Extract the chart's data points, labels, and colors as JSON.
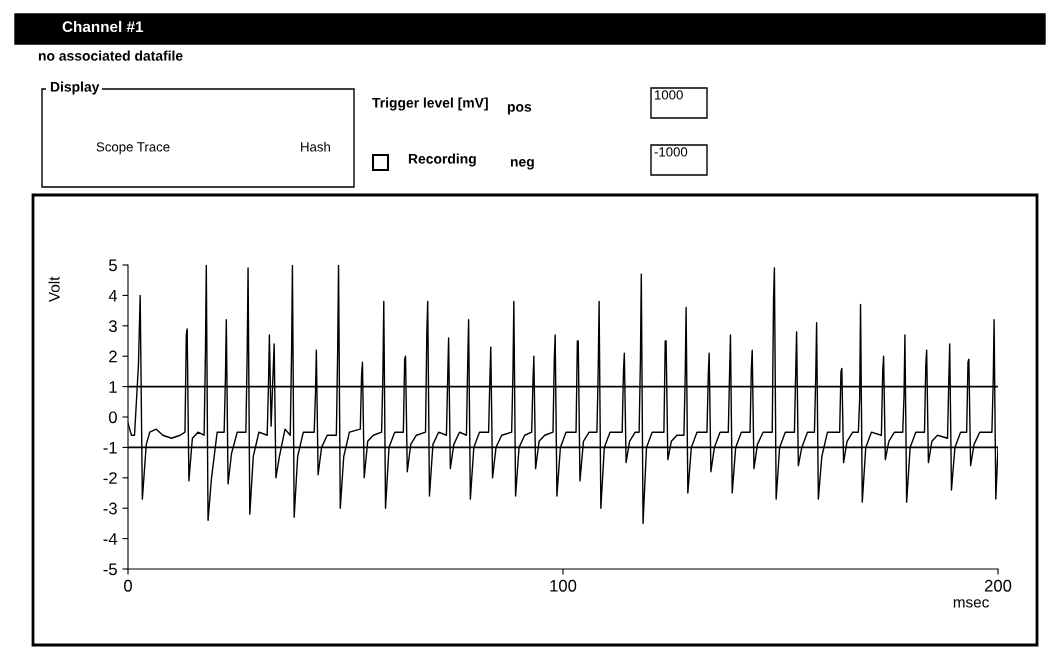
{
  "chart_data": {
    "type": "line",
    "title": "Channel #1",
    "xlabel": "msec",
    "ylabel": "Volt",
    "annotations": [
      "no associated datafile",
      "Display",
      "Scope Trace",
      "Hash",
      "Trigger level [mV]",
      "pos",
      "1000",
      "Recording",
      "neg",
      "-1000"
    ],
    "xlim": [
      0,
      200
    ],
    "xticks": [
      0,
      100,
      200
    ],
    "ylim": [
      -5,
      5
    ],
    "yticks": [
      -5,
      -4,
      -3,
      -2,
      -1,
      0,
      1,
      2,
      3,
      4,
      5
    ],
    "ref_lines": [
      {
        "axis": "y",
        "value": 1,
        "color": "#000000"
      },
      {
        "axis": "y",
        "value": -1,
        "color": "#000000"
      }
    ],
    "grid": false,
    "legend": false,
    "marker": "none",
    "line_style": "solid",
    "series": [
      {
        "color": "#000000",
        "x": [
          0,
          0.8,
          1.5,
          2.4,
          2.8,
          3.3,
          4.2,
          5.0,
          6.5,
          8,
          10,
          12,
          13.1,
          13.4,
          13.6,
          14.0,
          14.8,
          16.1,
          17.5,
          17.8,
          18.0,
          18.4,
          19.2,
          20.5,
          22.1,
          22.4,
          22.6,
          23.0,
          23.8,
          25.1,
          27.1,
          27.4,
          27.6,
          28.0,
          28.8,
          30.1,
          32.0,
          32.3,
          32.5,
          32.9,
          33.6,
          34.0,
          34.8,
          36.1,
          37.3,
          37.6,
          37.8,
          38.2,
          39.0,
          40.3,
          42.8,
          43.1,
          43.3,
          43.7,
          44.5,
          45.8,
          47.9,
          48.2,
          48.4,
          48.8,
          49.6,
          50.9,
          53.4,
          53.7,
          53.9,
          54.3,
          55.1,
          56.4,
          58.3,
          58.6,
          58.8,
          59.2,
          60.0,
          61.3,
          63.3,
          63.6,
          63.8,
          64.2,
          65.0,
          66.3,
          68.4,
          68.7,
          68.9,
          69.3,
          70.1,
          71.4,
          73.2,
          73.5,
          73.7,
          74.1,
          74.9,
          76.2,
          77.8,
          78.1,
          78.3,
          78.7,
          79.5,
          80.8,
          82.9,
          83.2,
          83.4,
          83.8,
          84.6,
          85.9,
          88.2,
          88.5,
          88.7,
          89.1,
          89.9,
          91.2,
          92.8,
          93.1,
          93.3,
          93.7,
          94.5,
          95.8,
          97.7,
          98.0,
          98.2,
          98.6,
          99.4,
          100.7,
          103.0,
          103.3,
          103.5,
          103.9,
          104.7,
          106.0,
          107.8,
          108.1,
          108.3,
          108.7,
          109.5,
          110.8,
          113.6,
          113.9,
          114.1,
          114.5,
          115.3,
          116.6,
          117.5,
          117.8,
          118.0,
          118.4,
          119.2,
          120.5,
          123.2,
          123.5,
          123.7,
          124.1,
          124.9,
          126.2,
          127.8,
          128.1,
          128.3,
          128.7,
          129.5,
          130.8,
          133.1,
          133.4,
          133.6,
          134.0,
          134.8,
          136.1,
          138.0,
          138.3,
          138.5,
          138.9,
          139.7,
          141.0,
          143.0,
          143.3,
          143.5,
          143.9,
          144.7,
          146.0,
          148.1,
          148.4,
          148.6,
          149.0,
          149.8,
          151.1,
          153.2,
          153.5,
          153.7,
          154.1,
          154.9,
          156.2,
          157.8,
          158.1,
          158.3,
          158.7,
          159.5,
          160.8,
          163.6,
          163.9,
          164.1,
          164.5,
          165.3,
          166.6,
          167.9,
          168.2,
          168.4,
          168.8,
          169.6,
          170.9,
          173.2,
          173.5,
          173.7,
          174.1,
          174.9,
          176.2,
          178.1,
          178.4,
          178.6,
          179.0,
          179.8,
          181.1,
          183.1,
          183.4,
          183.6,
          184.0,
          184.8,
          186.1,
          188.4,
          188.7,
          188.9,
          189.3,
          190.1,
          191.4,
          192.8,
          193.1,
          193.3,
          193.7,
          194.5,
          195.8,
          198.6,
          198.9,
          199.1,
          199.5,
          200
        ],
        "values": [
          -0.2,
          -0.6,
          -0.6,
          1.7,
          4.0,
          -2.7,
          -0.9,
          -0.5,
          -0.4,
          -0.6,
          -0.7,
          -0.6,
          -0.5,
          2.7,
          2.9,
          -2.1,
          -0.7,
          -0.5,
          -0.6,
          2.1,
          5.0,
          -3.4,
          -2.0,
          -0.5,
          -0.5,
          1.3,
          3.2,
          -2.2,
          -1.2,
          -0.5,
          -0.5,
          2.1,
          4.9,
          -3.2,
          -1.3,
          -0.5,
          -0.6,
          1.1,
          2.7,
          -0.3,
          2.4,
          -2.0,
          -1.3,
          -0.4,
          -0.6,
          2.1,
          5.0,
          -3.3,
          -1.3,
          -0.5,
          -0.5,
          0.8,
          2.2,
          -1.9,
          -1.0,
          -0.6,
          -0.6,
          2.2,
          5.0,
          -3.0,
          -1.3,
          -0.5,
          -0.4,
          1.4,
          1.8,
          -2.0,
          -0.8,
          -0.6,
          -0.5,
          1.4,
          3.8,
          -3.0,
          -1.0,
          -0.5,
          -0.5,
          1.9,
          2.0,
          -1.8,
          -0.9,
          -0.6,
          -0.5,
          2.8,
          3.8,
          -2.6,
          -0.9,
          -0.5,
          -0.6,
          1.3,
          2.6,
          -1.7,
          -0.9,
          -0.5,
          -0.6,
          1.8,
          3.2,
          -2.7,
          -1.0,
          -0.5,
          -0.5,
          1.3,
          2.3,
          -2.0,
          -1.0,
          -0.6,
          -0.5,
          1.5,
          3.8,
          -2.6,
          -1.0,
          -0.6,
          -0.5,
          1.2,
          2.0,
          -1.7,
          -0.8,
          -0.6,
          -0.5,
          1.9,
          2.7,
          -2.6,
          -1.0,
          -0.5,
          -0.5,
          2.5,
          2.5,
          -2.1,
          -0.8,
          -0.5,
          -0.5,
          1.6,
          3.8,
          -3.0,
          -1.0,
          -0.5,
          -0.5,
          1.5,
          2.1,
          -1.5,
          -0.8,
          -0.5,
          -0.5,
          1.9,
          4.7,
          -3.5,
          -1.0,
          -0.5,
          -0.5,
          2.5,
          2.5,
          -1.4,
          -0.8,
          -0.6,
          -0.6,
          1.4,
          3.6,
          -2.5,
          -1.0,
          -0.5,
          -0.5,
          1.4,
          2.1,
          -1.8,
          -1.0,
          -0.5,
          -0.5,
          1.5,
          2.7,
          -2.5,
          -1.0,
          -0.5,
          -0.5,
          1.6,
          2.2,
          -1.7,
          -0.9,
          -0.5,
          -0.5,
          3.9,
          4.9,
          -2.7,
          -1.0,
          -0.5,
          -0.5,
          1.5,
          2.8,
          -1.6,
          -1.0,
          -0.5,
          -0.5,
          1.3,
          3.1,
          -2.7,
          -1.3,
          -0.5,
          -0.5,
          1.5,
          1.6,
          -1.5,
          -0.8,
          -0.5,
          -0.5,
          0.6,
          3.7,
          -2.8,
          -1.0,
          -0.5,
          -0.6,
          1.5,
          2.0,
          -1.4,
          -0.8,
          -0.5,
          -0.5,
          0.7,
          2.7,
          -2.8,
          -1.0,
          -0.5,
          -0.5,
          1.7,
          2.2,
          -1.5,
          -0.8,
          -0.6,
          -0.7,
          1.3,
          2.4,
          -2.4,
          -1.0,
          -0.5,
          -0.5,
          1.8,
          1.9,
          -1.6,
          -0.9,
          -0.5,
          -0.5,
          1.2,
          3.2,
          -2.7,
          -1.0
        ]
      }
    ]
  }
}
